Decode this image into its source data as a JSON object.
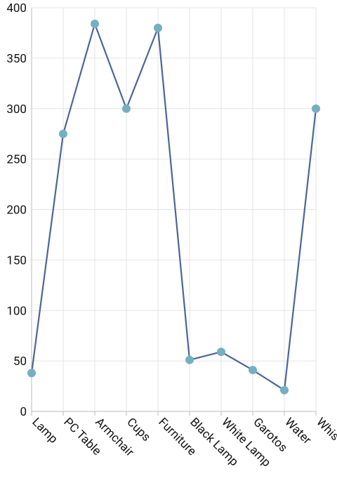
{
  "chart_data": {
    "type": "line",
    "categories": [
      "Lamp",
      "PC Table",
      "Armchair",
      "Cups",
      "Furniture",
      "Black Lamp",
      "White Lamp",
      "Garotos",
      "Water",
      "Whis"
    ],
    "series": [
      {
        "color": "#4a6796",
        "marker_color": "#75afc2",
        "values": [
          38,
          275,
          384,
          300,
          380,
          51,
          59,
          41,
          21,
          300
        ]
      }
    ],
    "ylim": [
      0,
      400
    ],
    "yticks": [
      0,
      50,
      100,
      150,
      200,
      250,
      300,
      350,
      400
    ],
    "grid": true
  }
}
